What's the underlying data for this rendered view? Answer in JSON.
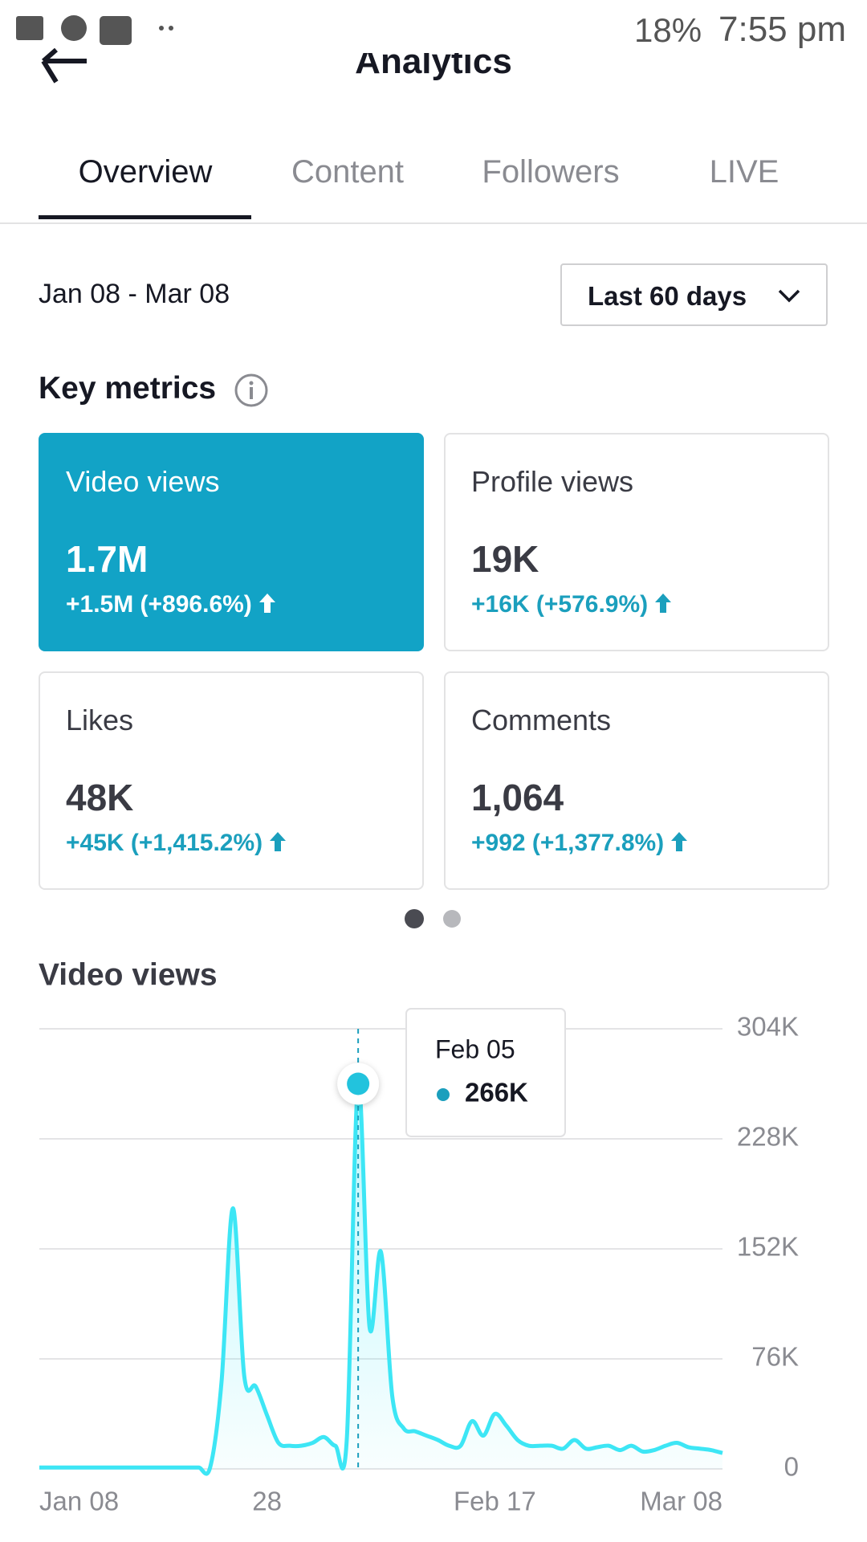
{
  "status_bar": {
    "battery": "18%",
    "time": "7:55 pm"
  },
  "header": {
    "title": "Analytics"
  },
  "tabs": [
    "Overview",
    "Content",
    "Followers",
    "LIVE"
  ],
  "date_range": "Jan 08 - Mar 08",
  "range_button": "Last 60 days",
  "key_metrics": {
    "title": "Key metrics",
    "cards": [
      {
        "label": "Video views",
        "value": "1.7M",
        "change": "+1.5M (+896.6%)"
      },
      {
        "label": "Profile views",
        "value": "19K",
        "change": "+16K (+576.9%)"
      },
      {
        "label": "Likes",
        "value": "48K",
        "change": "+45K (+1,415.2%)"
      },
      {
        "label": "Comments",
        "value": "1,064",
        "change": "+992 (+1,377.8%)"
      }
    ]
  },
  "chart_data": {
    "type": "line",
    "title": "Video views",
    "categories": [
      "Jan 08",
      null,
      null,
      null,
      null,
      null,
      null,
      null,
      null,
      null,
      null,
      null,
      null,
      null,
      null,
      null,
      null,
      null,
      null,
      null,
      "28",
      null,
      null,
      null,
      null,
      null,
      null,
      null,
      null,
      null,
      null,
      null,
      null,
      null,
      null,
      null,
      null,
      null,
      null,
      null,
      "Feb 17",
      null,
      null,
      null,
      null,
      null,
      null,
      null,
      null,
      null,
      null,
      null,
      null,
      null,
      null,
      null,
      null,
      null,
      null,
      null,
      "Mar 08"
    ],
    "values": [
      1000,
      1000,
      1000,
      1000,
      1000,
      1000,
      1000,
      1000,
      1000,
      1000,
      1000,
      1000,
      1000,
      1000,
      1000,
      1000,
      60000,
      180000,
      64000,
      57000,
      37000,
      18000,
      16000,
      16000,
      18000,
      22000,
      16000,
      20000,
      266000,
      98000,
      150000,
      50000,
      28000,
      26000,
      23000,
      20000,
      16000,
      16000,
      33000,
      23000,
      38000,
      30000,
      20000,
      16000,
      16000,
      16000,
      14000,
      20000,
      14000,
      15000,
      16000,
      13000,
      16000,
      12000,
      13000,
      16000,
      18000,
      15000,
      14000,
      13000,
      11000
    ],
    "color": "#3de6f5",
    "ylim": [
      0,
      304000
    ],
    "yticks": [
      0,
      {
        "value": 76000,
        "label": "76K"
      },
      {
        "value": 152000,
        "label": "152K"
      },
      {
        "value": 228000,
        "label": "228K"
      },
      {
        "value": 304000,
        "label": "304K"
      }
    ],
    "grid": true,
    "tooltip": {
      "label": "Feb 05",
      "value_label": "266K"
    }
  }
}
